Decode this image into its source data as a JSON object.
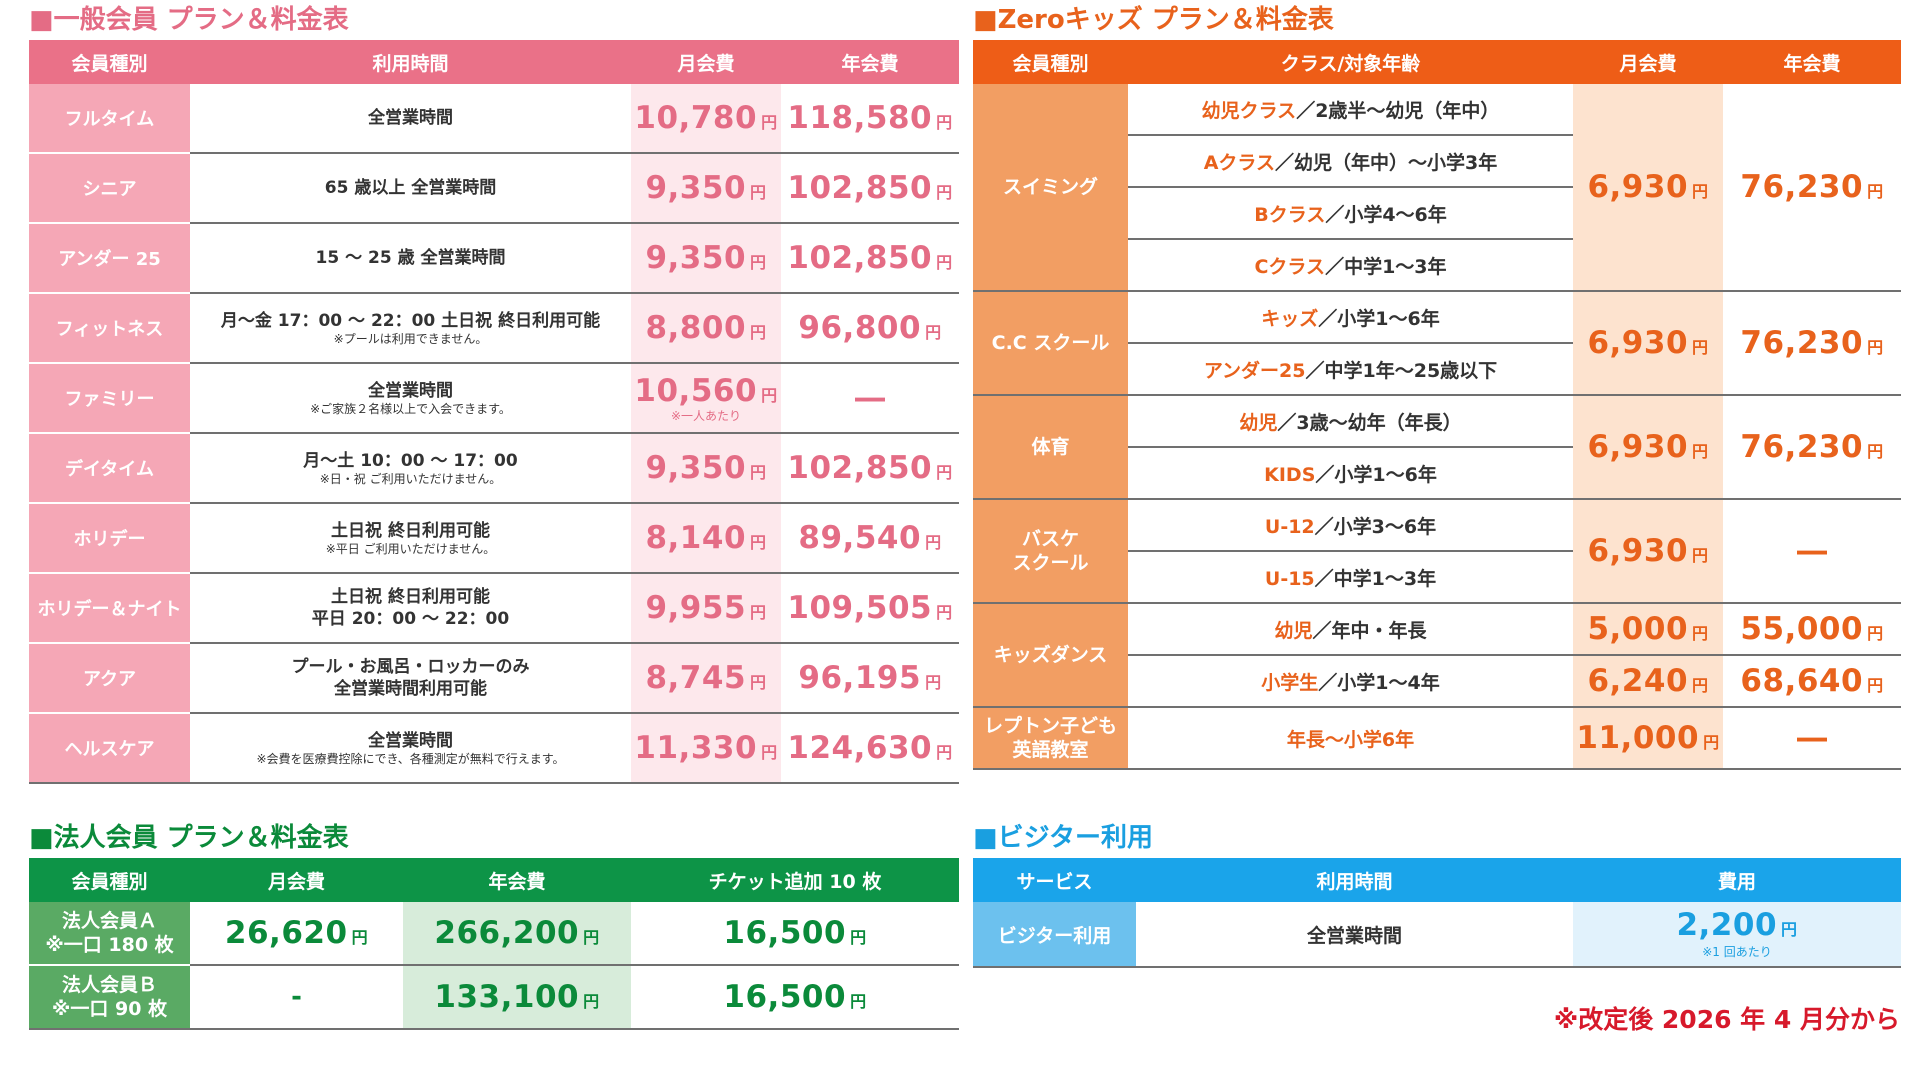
{
  "yen": "円",
  "general": {
    "title": "■一般会員 プラン＆料金表",
    "headers": [
      "会員種別",
      "利用時間",
      "月会費",
      "年会費"
    ],
    "rows": [
      {
        "type": "フルタイム",
        "time": "全営業時間",
        "time_note": "",
        "monthly": "10,780",
        "monthly_note": "",
        "yearly": "118,580"
      },
      {
        "type": "シニア",
        "time": "65 歳以上 全営業時間",
        "time_note": "",
        "monthly": "9,350",
        "monthly_note": "",
        "yearly": "102,850"
      },
      {
        "type": "アンダー 25",
        "time": "15 ～ 25 歳 全営業時間",
        "time_note": "",
        "monthly": "9,350",
        "monthly_note": "",
        "yearly": "102,850"
      },
      {
        "type": "フィットネス",
        "time": "月～金 17：00 ～ 22：00 土日祝 終日利用可能",
        "time_note": "※プールは利用できません。",
        "monthly": "8,800",
        "monthly_note": "",
        "yearly": "96,800"
      },
      {
        "type": "ファミリー",
        "time": "全営業時間",
        "time_note": "※ご家族２名様以上で入会できます。",
        "monthly": "10,560",
        "monthly_note": "※一人あたり",
        "yearly": "―"
      },
      {
        "type": "デイタイム",
        "time": "月～土 10：00 ～ 17：00",
        "time_note": "※日・祝 ご利用いただけません。",
        "monthly": "9,350",
        "monthly_note": "",
        "yearly": "102,850"
      },
      {
        "type": "ホリデー",
        "time": "土日祝 終日利用可能",
        "time_note": "※平日 ご利用いただけません。",
        "monthly": "8,140",
        "monthly_note": "",
        "yearly": "89,540"
      },
      {
        "type": "ホリデー＆ナイト",
        "time": "土日祝 終日利用可能",
        "time_line2": "平日 20：00 ～ 22：00",
        "time_note": "",
        "monthly": "9,955",
        "monthly_note": "",
        "yearly": "109,505"
      },
      {
        "type": "アクア",
        "time": "プール・お風呂・ロッカーのみ",
        "time_line2": "全営業時間利用可能",
        "time_note": "",
        "monthly": "8,745",
        "monthly_note": "",
        "yearly": "96,195"
      },
      {
        "type": "ヘルスケア",
        "time": "全営業時間",
        "time_note": "※会費を医療費控除にでき、各種測定が無料で行えます。",
        "monthly": "11,330",
        "monthly_note": "",
        "yearly": "124,630"
      }
    ]
  },
  "kids": {
    "title": "■Zeroキッズ プラン＆料金表",
    "headers": [
      "会員種別",
      "クラス/対象年齢",
      "月会費",
      "年会費"
    ],
    "groups": [
      {
        "type": "スイミング",
        "monthly": "6,930",
        "yearly": "76,230",
        "classes": [
          {
            "name": "幼児クラス",
            "age": "／2歳半～幼児（年中）"
          },
          {
            "name": "Aクラス",
            "age": "／幼児（年中）～小学3年"
          },
          {
            "name": "Bクラス",
            "age": "／小学4～6年"
          },
          {
            "name": "Cクラス",
            "age": "／中学1～3年"
          }
        ]
      },
      {
        "type": "C.C スクール",
        "monthly": "6,930",
        "yearly": "76,230",
        "classes": [
          {
            "name": "キッズ",
            "age": "／小学1～6年"
          },
          {
            "name": "アンダー25",
            "age": "／中学1年～25歳以下"
          }
        ]
      },
      {
        "type": "体育",
        "monthly": "6,930",
        "yearly": "76,230",
        "classes": [
          {
            "name": "幼児",
            "age": "／3歳～幼年（年長）"
          },
          {
            "name": "KIDS",
            "age": "／小学1～6年"
          }
        ]
      },
      {
        "type": "バスケ",
        "type_line2": "スクール",
        "monthly": "6,930",
        "yearly": "―",
        "classes": [
          {
            "name": "U-12",
            "age": "／小学3～6年"
          },
          {
            "name": "U-15",
            "age": "／中学1～3年"
          }
        ]
      }
    ],
    "dance": {
      "type": "キッズダンス",
      "rows": [
        {
          "name": "幼児",
          "age": "／年中・年長",
          "monthly": "5,000",
          "yearly": "55,000"
        },
        {
          "name": "小学生",
          "age": "／小学1～4年",
          "monthly": "6,240",
          "yearly": "68,640"
        }
      ]
    },
    "lepton": {
      "type": "レプトン子ども",
      "type_line2": "英語教室",
      "name": "年長～小学6年",
      "monthly": "11,000",
      "yearly": "―"
    }
  },
  "corporate": {
    "title": "■法人会員 プラン＆料金表",
    "headers": [
      "会員種別",
      "月会費",
      "年会費",
      "チケット追加 10 枚"
    ],
    "rows": [
      {
        "type": "法人会員Ａ",
        "type_line2": "※一口 180 枚",
        "monthly": "26,620",
        "annual": "266,200",
        "ticket": "16,500"
      },
      {
        "type": "法人会員Ｂ",
        "type_line2": "※一口 90 枚",
        "monthly": "-",
        "annual": "133,100",
        "ticket": "16,500"
      }
    ]
  },
  "visitor": {
    "title": "■ビジター利用",
    "headers": [
      "サービス",
      "利用時間",
      "費用"
    ],
    "row": {
      "service": "ビジター利用",
      "time": "全営業時間",
      "fee": "2,200",
      "fee_note": "※1 回あたり"
    }
  },
  "footnote": "※改定後 2026 年 4 月分から",
  "colors": {
    "general": "#ea7188",
    "kids": "#ee5d17",
    "corporate": "#0d9447",
    "visitor": "#1aa4ea",
    "footnote": "#d7192b"
  }
}
